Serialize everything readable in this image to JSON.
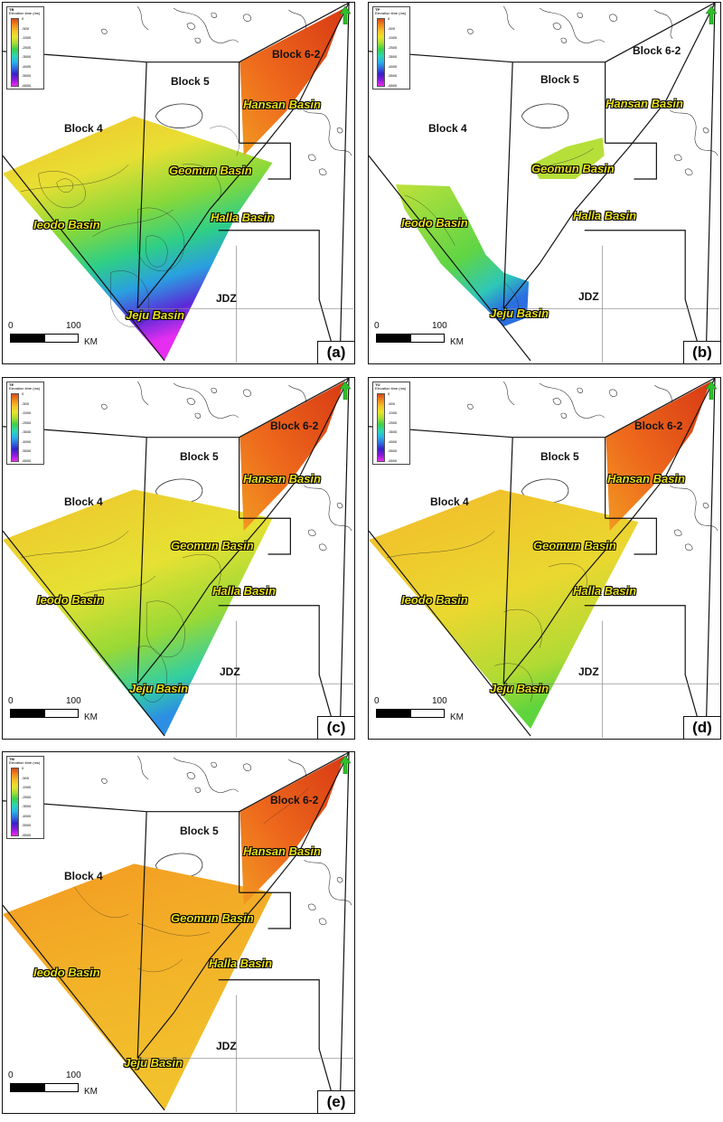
{
  "legend": {
    "subtitle": "Elevation time (ms)",
    "ticks": [
      "0",
      "-500",
      "-1500",
      "-2500",
      "-3500",
      "-4500",
      "-5500",
      "-6500"
    ],
    "ramp_colors": [
      "#d94a1a",
      "#f08a1c",
      "#f4c22a",
      "#e9e32e",
      "#a8dd34",
      "#3fd04a",
      "#2ed6b0",
      "#29b5e8",
      "#2f6fe0",
      "#3320c8",
      "#8a1ad8",
      "#ee2bf0"
    ]
  },
  "labels": {
    "block4": "Block 4",
    "block5": "Block 5",
    "block62": "Block 6-2",
    "jdz": "JDZ",
    "ieodo": "Ieodo Basin",
    "geomun": "Geomun Basin",
    "hansan": "Hansan Basin",
    "halla": "Halla Basin",
    "jeju": "Jeju Basin",
    "scale_zero": "0",
    "scale_hundred": "100",
    "scale_unit": "KM"
  },
  "panels": [
    {
      "id": "(a)",
      "legend_title": "TB",
      "dominant_surface": "varied-deep"
    },
    {
      "id": "(b)",
      "legend_title": "TP",
      "dominant_surface": "partial"
    },
    {
      "id": "(c)",
      "legend_title": "TE",
      "dominant_surface": "moderate"
    },
    {
      "id": "(d)",
      "legend_title": "TO",
      "dominant_surface": "shallow"
    },
    {
      "id": "(e)",
      "legend_title": "TM",
      "dominant_surface": "shallowest"
    }
  ]
}
